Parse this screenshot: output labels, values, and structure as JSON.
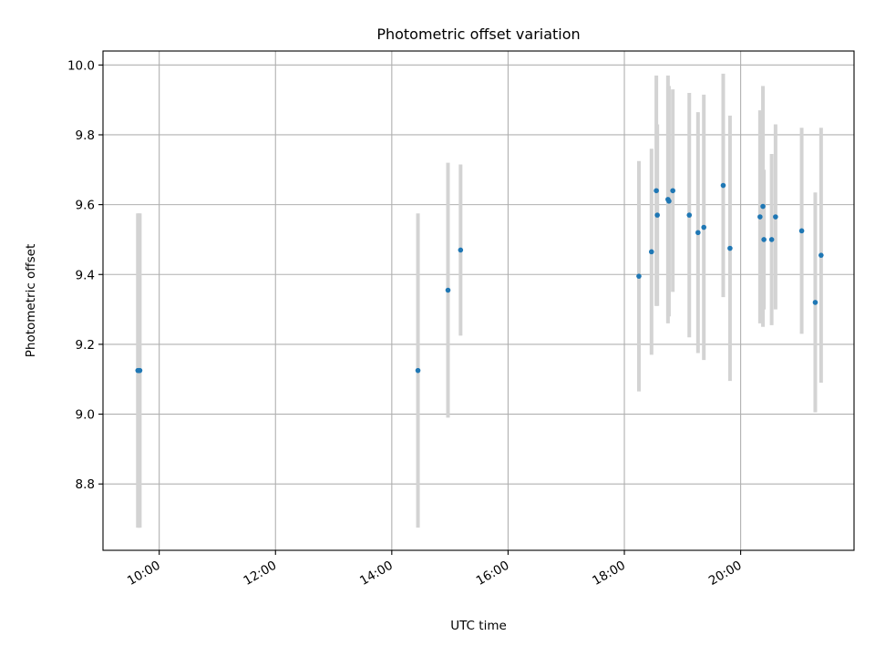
{
  "chart_data": {
    "type": "scatter",
    "title": "Photometric offset variation",
    "xlabel": "UTC time",
    "ylabel": "Photometric offset",
    "xlim": [
      "09:02",
      "21:57"
    ],
    "ylim": [
      8.61,
      10.04
    ],
    "x_ticks": [
      "10:00",
      "12:00",
      "14:00",
      "16:00",
      "18:00",
      "20:00"
    ],
    "y_ticks": [
      8.8,
      9.0,
      9.2,
      9.4,
      9.6,
      9.8,
      10.0
    ],
    "y_tick_labels": [
      "8.8",
      "9.0",
      "9.2",
      "9.4",
      "9.6",
      "9.8",
      "10.0"
    ],
    "grid": true,
    "marker_color": "#1f77b4",
    "errorbar_color": "#d3d3d3",
    "points": [
      {
        "x": "09:38",
        "y": 9.125,
        "err": 0.45
      },
      {
        "x": "09:39",
        "y": 9.125,
        "err": 0.45
      },
      {
        "x": "09:40",
        "y": 9.125,
        "err": 0.45
      },
      {
        "x": "14:27",
        "y": 9.125,
        "err": 0.45
      },
      {
        "x": "14:58",
        "y": 9.355,
        "err": 0.365
      },
      {
        "x": "15:11",
        "y": 9.47,
        "err": 0.245
      },
      {
        "x": "18:15",
        "y": 9.395,
        "err": 0.33
      },
      {
        "x": "18:28",
        "y": 9.465,
        "err": 0.295
      },
      {
        "x": "18:33",
        "y": 9.64,
        "err": 0.33
      },
      {
        "x": "18:34",
        "y": 9.57,
        "err": 0.26
      },
      {
        "x": "18:45",
        "y": 9.615,
        "err": 0.355
      },
      {
        "x": "18:46",
        "y": 9.61,
        "err": 0.33
      },
      {
        "x": "18:50",
        "y": 9.64,
        "err": 0.29
      },
      {
        "x": "19:07",
        "y": 9.57,
        "err": 0.35
      },
      {
        "x": "19:16",
        "y": 9.52,
        "err": 0.345
      },
      {
        "x": "19:22",
        "y": 9.535,
        "err": 0.38
      },
      {
        "x": "19:42",
        "y": 9.655,
        "err": 0.32
      },
      {
        "x": "19:49",
        "y": 9.475,
        "err": 0.38
      },
      {
        "x": "20:20",
        "y": 9.565,
        "err": 0.305
      },
      {
        "x": "20:23",
        "y": 9.595,
        "err": 0.345
      },
      {
        "x": "20:24",
        "y": 9.5,
        "err": 0.2
      },
      {
        "x": "20:32",
        "y": 9.5,
        "err": 0.245
      },
      {
        "x": "20:36",
        "y": 9.565,
        "err": 0.265
      },
      {
        "x": "21:03",
        "y": 9.525,
        "err": 0.295
      },
      {
        "x": "21:17",
        "y": 9.32,
        "err": 0.315
      },
      {
        "x": "21:23",
        "y": 9.455,
        "err": 0.365
      }
    ]
  }
}
